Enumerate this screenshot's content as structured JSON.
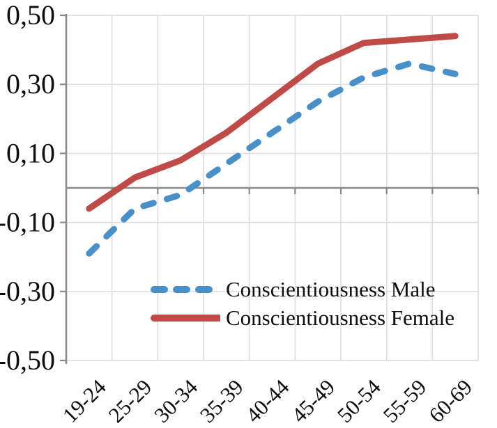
{
  "figure": {
    "background": "#ffffff",
    "text_color": "#0d0d0d",
    "grid_color": "#dcdcdc",
    "axis_color": "#8a8a8a"
  },
  "chart_data": {
    "type": "line",
    "title": "",
    "xlabel": "",
    "ylabel": "",
    "categories": [
      "19-24",
      "25-29",
      "30-34",
      "35-39",
      "40-44",
      "45-49",
      "50-54",
      "55-59",
      "60-69"
    ],
    "series": [
      {
        "name": "Conscientiousness Male",
        "color": "#4a90c8",
        "line_style": "dashed",
        "values": [
          -0.19,
          -0.06,
          -0.02,
          0.07,
          0.16,
          0.25,
          0.32,
          0.36,
          0.33
        ]
      },
      {
        "name": "Conscientiousness Female",
        "color": "#be4b48",
        "line_style": "solid",
        "values": [
          -0.06,
          0.03,
          0.08,
          0.16,
          0.26,
          0.36,
          0.42,
          0.43,
          0.44
        ]
      }
    ],
    "ylim": [
      -0.5,
      0.5
    ],
    "yticks": [
      {
        "value": 0.5,
        "label": "0,50"
      },
      {
        "value": 0.3,
        "label": "0,30"
      },
      {
        "value": 0.1,
        "label": "0,10"
      },
      {
        "value": -0.1,
        "label": "-0,10"
      },
      {
        "value": -0.3,
        "label": "-0,30"
      },
      {
        "value": -0.5,
        "label": "-0,50"
      }
    ],
    "grid": "both",
    "legend_position": "inside-bottom-center"
  }
}
